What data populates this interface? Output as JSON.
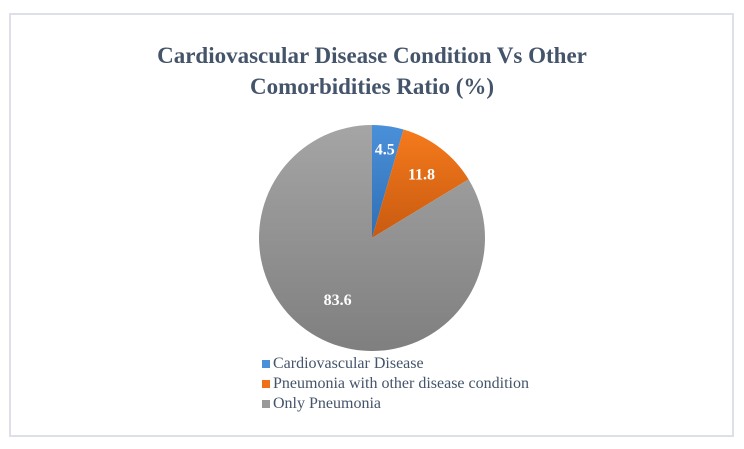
{
  "chart_data": {
    "type": "pie",
    "title": "Cardiovascular Disease Condition Vs Other Comorbidities Ratio (%)",
    "title_lines": [
      "Cardiovascular Disease Condition Vs Other",
      "Comorbidities Ratio (%)"
    ],
    "slices": [
      {
        "label": "Cardiovascular Disease",
        "value": 4.5,
        "value_label": "4.5",
        "color": "#4a90d9",
        "color_dark": "#2f6fb5"
      },
      {
        "label": "Pneumonia with other disease condition",
        "value": 11.8,
        "value_label": "11.8",
        "color": "#f57a1c",
        "color_dark": "#c85a10"
      },
      {
        "label": "Only Pneumonia",
        "value": 83.6,
        "value_label": "83.6",
        "color": "#a5a5a5",
        "color_dark": "#7f7f7f"
      }
    ],
    "start_angle_deg": 0,
    "direction": "clockwise",
    "legend_position": "bottom"
  }
}
